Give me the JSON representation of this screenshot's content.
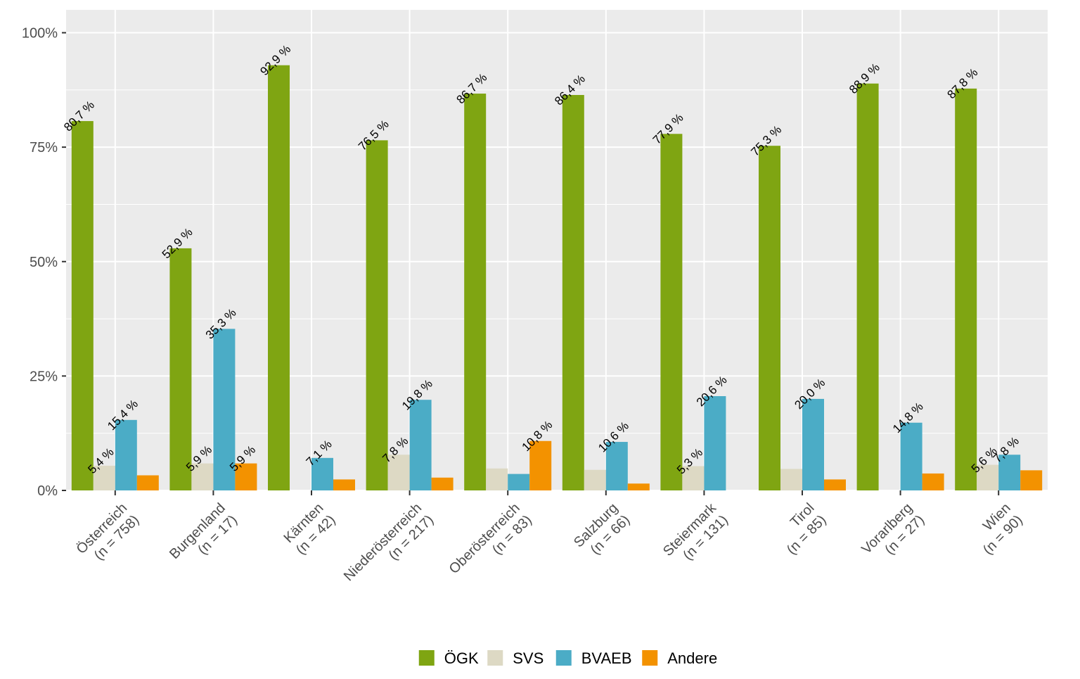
{
  "chart_data": {
    "type": "bar",
    "title": "",
    "xlabel": "",
    "ylabel": "",
    "ylim": [
      0,
      1.05
    ],
    "y_ticks": [
      {
        "value": 0,
        "label": "0%"
      },
      {
        "value": 0.25,
        "label": "25%"
      },
      {
        "value": 0.5,
        "label": "50%"
      },
      {
        "value": 0.75,
        "label": "75%"
      },
      {
        "value": 1.0,
        "label": "100%"
      }
    ],
    "grid": true,
    "legend_position": "bottom",
    "categories": [
      {
        "name": "Österreich",
        "n": "(n = 758)"
      },
      {
        "name": "Burgenland",
        "n": "(n = 17)"
      },
      {
        "name": "Kärnten",
        "n": "(n = 42)"
      },
      {
        "name": "Niederösterreich",
        "n": "(n = 217)"
      },
      {
        "name": "Oberösterreich",
        "n": "(n = 83)"
      },
      {
        "name": "Salzburg",
        "n": "(n = 66)"
      },
      {
        "name": "Steiermark",
        "n": "(n = 131)"
      },
      {
        "name": "Tirol",
        "n": "(n = 85)"
      },
      {
        "name": "Vorarlberg",
        "n": "(n = 27)"
      },
      {
        "name": "Wien",
        "n": "(n = 90)"
      }
    ],
    "series": [
      {
        "name": "ÖGK",
        "color": "#7FA512",
        "values": [
          0.807,
          0.529,
          0.929,
          0.765,
          0.867,
          0.864,
          0.779,
          0.753,
          0.889,
          0.878
        ],
        "labels": [
          "80,7 %",
          "52,9 %",
          "92,9 %",
          "76,5 %",
          "86,7 %",
          "86,4 %",
          "77,9 %",
          "75,3 %",
          "88,9 %",
          "87,8 %"
        ]
      },
      {
        "name": "SVS",
        "color": "#DDD9C4",
        "values": [
          0.054,
          0.059,
          0.0,
          0.078,
          0.048,
          0.045,
          0.053,
          0.047,
          0.0,
          0.056
        ],
        "labels": [
          "5,4 %",
          "5,9 %",
          "",
          "7,8 %",
          "",
          "",
          "5,3 %",
          "",
          "",
          "5,6 %"
        ]
      },
      {
        "name": "BVAEB",
        "color": "#4BACC6",
        "values": [
          0.154,
          0.353,
          0.071,
          0.198,
          0.036,
          0.106,
          0.206,
          0.2,
          0.148,
          0.078
        ],
        "labels": [
          "15,4 %",
          "35,3 %",
          "7,1 %",
          "19,8 %",
          "",
          "10,6 %",
          "20,6 %",
          "20,0 %",
          "14,8 %",
          "7,8 %"
        ]
      },
      {
        "name": "Andere",
        "color": "#F39200",
        "values": [
          0.033,
          0.059,
          0.024,
          0.028,
          0.108,
          0.015,
          0.0,
          0.024,
          0.037,
          0.044
        ],
        "labels": [
          "",
          "5,9 %",
          "",
          "",
          "10,8 %",
          "",
          "",
          "",
          "",
          ""
        ]
      }
    ]
  }
}
